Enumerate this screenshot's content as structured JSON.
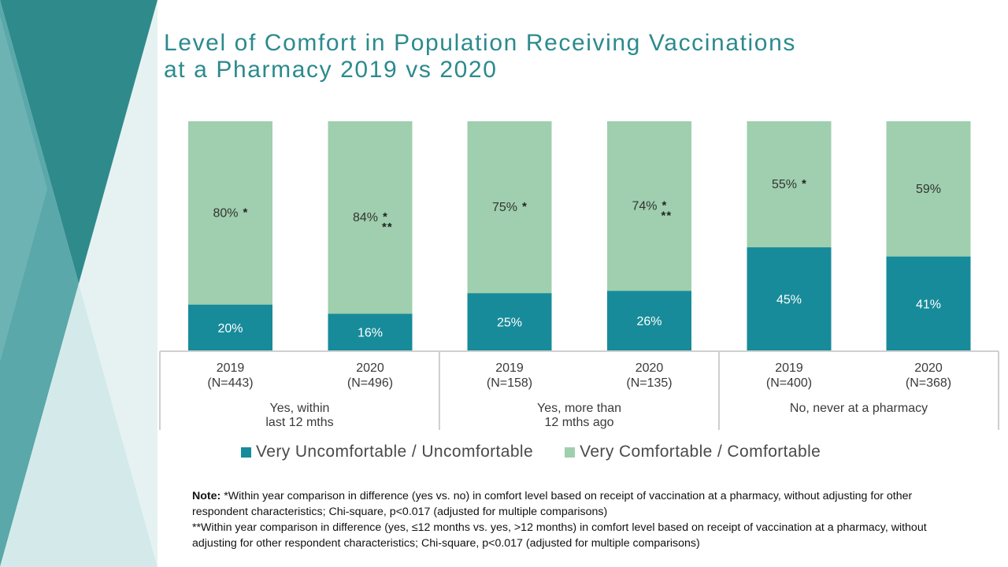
{
  "slide": {
    "title_line1": "Level of Comfort in Population Receiving Vaccinations",
    "title_line2": "at a Pharmacy 2019 vs 2020"
  },
  "colors": {
    "uncomfortable": "#178b9a",
    "comfortable": "#9fcfae",
    "accent": "#2b8a8d"
  },
  "chart_data": {
    "type": "bar",
    "stacked": true,
    "ylim": [
      0,
      100
    ],
    "grid": false,
    "legend_position": "bottom",
    "categories": [
      {
        "year": "2019",
        "n": "(N=443)"
      },
      {
        "year": "2020",
        "n": "(N=496)"
      },
      {
        "year": "2019",
        "n": "(N=158)"
      },
      {
        "year": "2020",
        "n": "(N=135)"
      },
      {
        "year": "2019",
        "n": "(N=400)"
      },
      {
        "year": "2020",
        "n": "(N=368)"
      }
    ],
    "groups": [
      {
        "line1": "Yes, within",
        "line2": "last 12 mths"
      },
      {
        "line1": "Yes, more than",
        "line2": "12 mths ago"
      },
      {
        "line1": "No, never at a pharmacy",
        "line2": ""
      }
    ],
    "series": [
      {
        "name": "Very Uncomfortable / Uncomfortable",
        "values": [
          20,
          16,
          25,
          26,
          45,
          41
        ],
        "labels": [
          "20%",
          "16%",
          "25%",
          "26%",
          "45%",
          "41%"
        ]
      },
      {
        "name": "Very Comfortable / Comfortable",
        "values": [
          80,
          84,
          75,
          74,
          55,
          59
        ],
        "labels": [
          "80%",
          "84%",
          "75%",
          "74%",
          "55%",
          "59%"
        ]
      }
    ],
    "annotations": [
      {
        "star1": "*",
        "star2": ""
      },
      {
        "star1": "*",
        "star2": "**"
      },
      {
        "star1": "*",
        "star2": ""
      },
      {
        "star1": "*",
        "star2": "**"
      },
      {
        "star1": "*",
        "star2": ""
      },
      {
        "star1": "",
        "star2": ""
      }
    ]
  },
  "note": {
    "label": "Note:",
    "line1": " *Within year comparison in difference (yes vs. no) in comfort level based on receipt of vaccination at a pharmacy, without adjusting for other respondent characteristics; Chi-square, p<0.017 (adjusted for multiple comparisons)",
    "line2": "**Within year comparison in difference (yes, ≤12 months vs. yes, >12 months) in comfort level based on receipt of vaccination at a pharmacy, without adjusting for other respondent characteristics; Chi-square, p<0.017 (adjusted for multiple comparisons)"
  }
}
